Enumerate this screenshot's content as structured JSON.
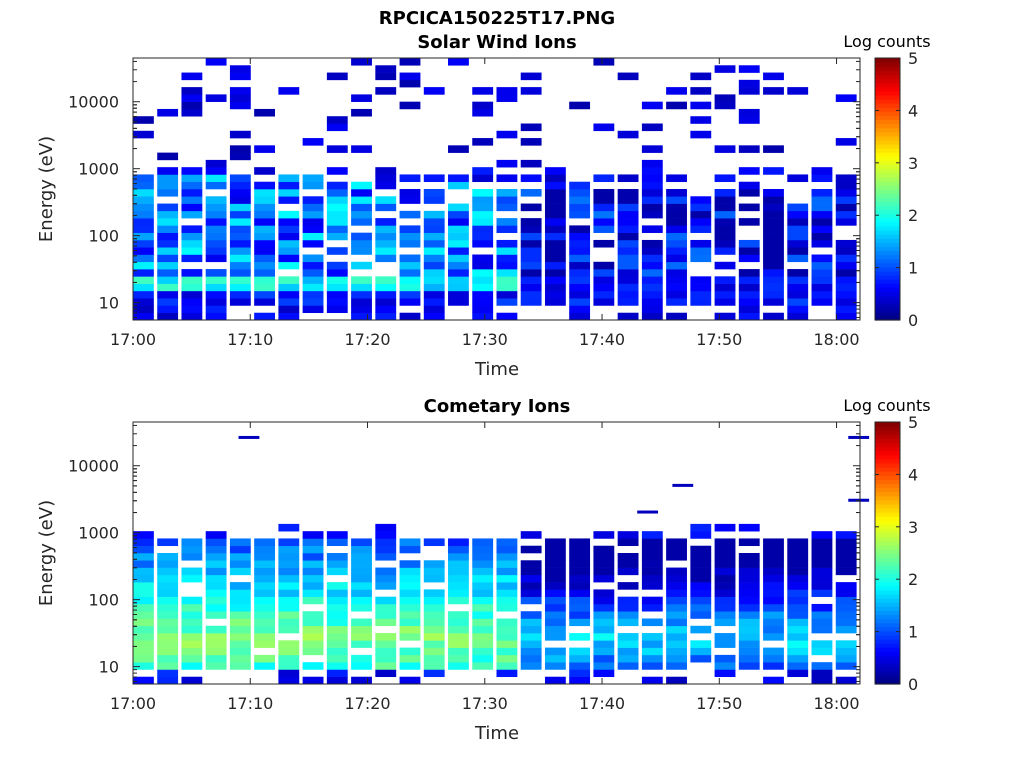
{
  "figure_title": "RPCICA150225T17.PNG",
  "chart_data": [
    {
      "type": "heatmap",
      "title": "Solar Wind Ions",
      "xlabel": "Time",
      "ylabel": "Energy (eV)",
      "x_ticks": [
        "17:00",
        "17:10",
        "17:20",
        "17:30",
        "17:40",
        "17:50",
        "18:00"
      ],
      "y_ticks": [
        "10",
        "100",
        "1000",
        "10000"
      ],
      "y_tick_values": [
        10,
        100,
        1000,
        10000
      ],
      "y_scale": "log",
      "ylim": [
        5.5,
        45000
      ],
      "xlim_minutes": [
        0,
        62
      ],
      "colorbar": {
        "label": "Log counts",
        "ticks": [
          "0",
          "1",
          "2",
          "3",
          "4",
          "5"
        ],
        "range": [
          0,
          5
        ],
        "colormap": "jet"
      },
      "time_columns": 30,
      "energy_bins": 36,
      "profile": {
        "low_band_edges_eV": [
          14,
          25
        ],
        "low_band_peak_log_counts": 2.2,
        "mid_band_top_eV": [
          850,
          400
        ],
        "mid_band_peak_log_counts": 1.9,
        "sparse_high_energy_max_eV": 40000
      }
    },
    {
      "type": "heatmap",
      "title": "Cometary Ions",
      "xlabel": "Time",
      "ylabel": "Energy (eV)",
      "x_ticks": [
        "17:00",
        "17:10",
        "17:20",
        "17:30",
        "17:40",
        "17:50",
        "18:00"
      ],
      "y_ticks": [
        "10",
        "100",
        "1000",
        "10000"
      ],
      "y_tick_values": [
        10,
        100,
        1000,
        10000
      ],
      "y_scale": "log",
      "ylim": [
        5.5,
        45000
      ],
      "xlim_minutes": [
        0,
        62
      ],
      "colorbar": {
        "label": "Log counts",
        "ticks": [
          "0",
          "1",
          "2",
          "3",
          "4",
          "5"
        ],
        "range": [
          0,
          5
        ],
        "colormap": "jet"
      },
      "time_columns": 30,
      "energy_bins": 36,
      "profile": {
        "peak_energy_eV": 25,
        "peak_log_counts": 2.8,
        "top_edge_eV": 900,
        "isolated_high_energy_eV": [
          26000,
          5000,
          3000,
          2000
        ]
      }
    }
  ]
}
